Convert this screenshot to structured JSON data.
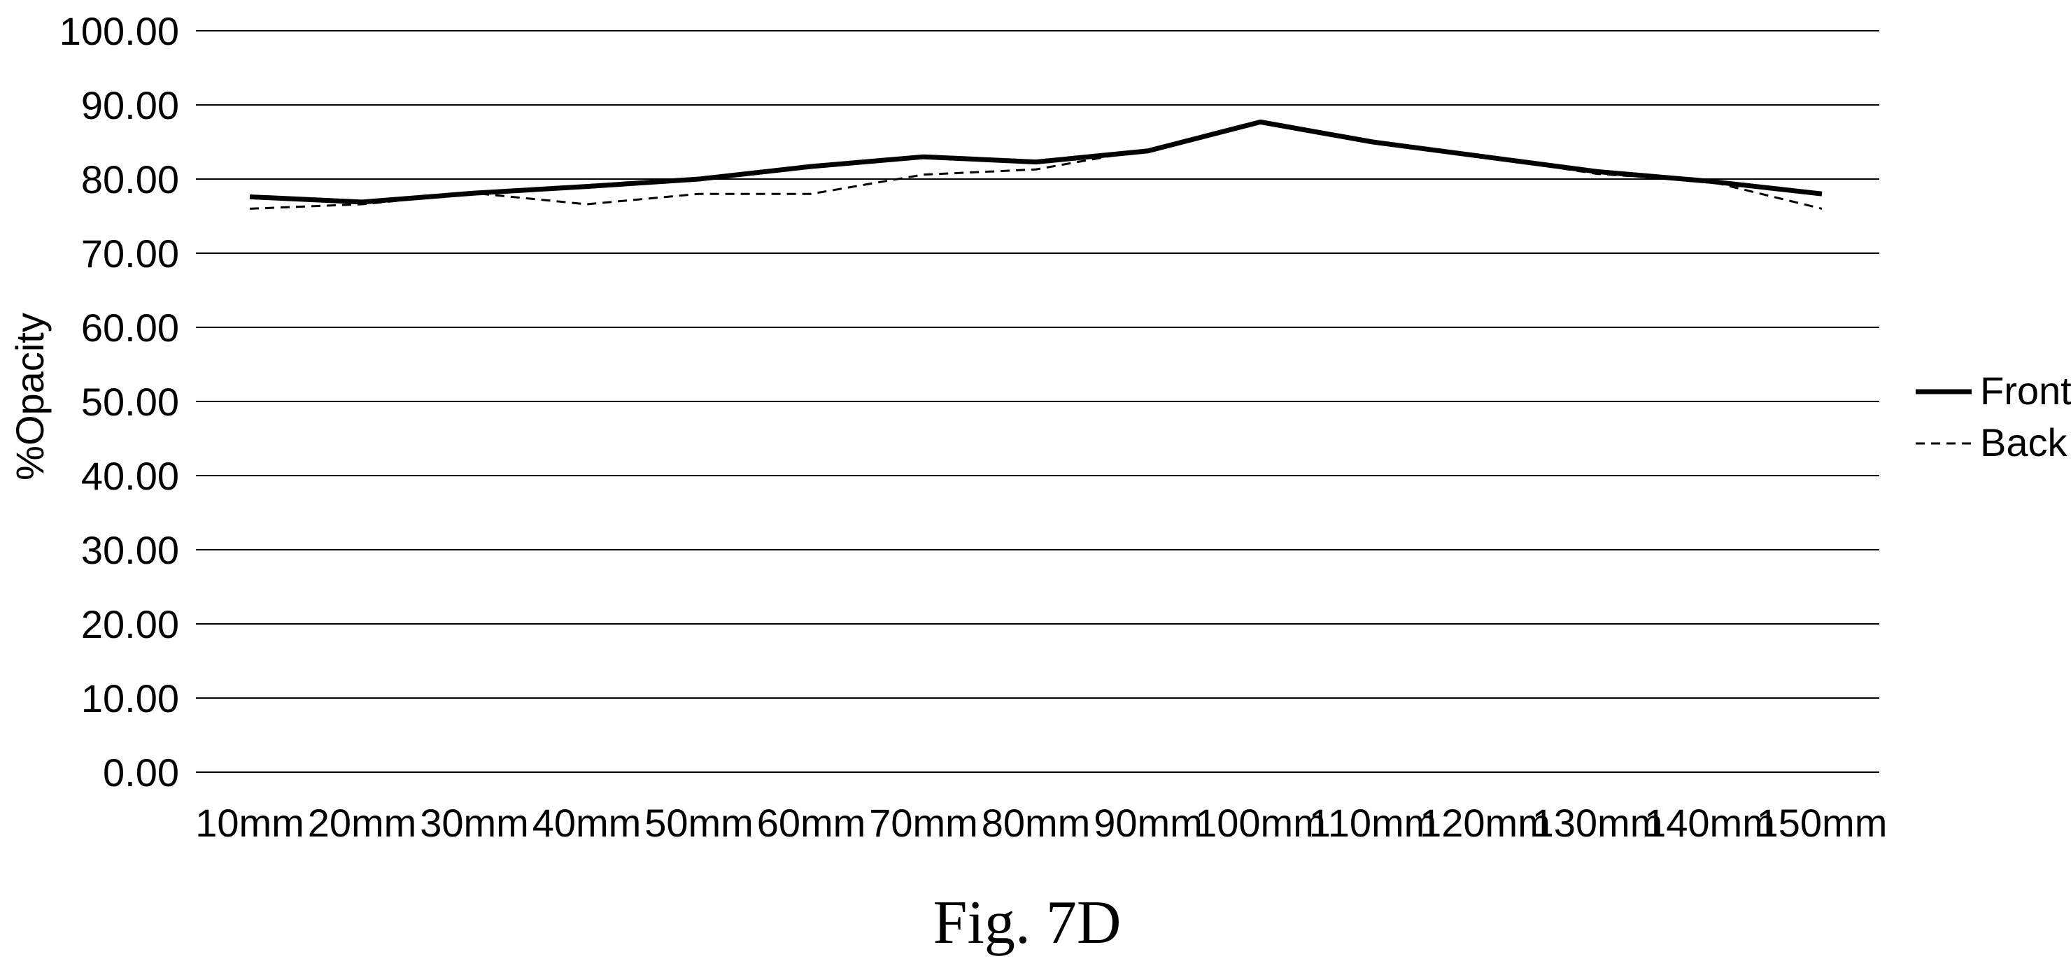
{
  "chart_data": {
    "type": "line",
    "title": "",
    "xlabel": "",
    "ylabel": "%Opacity",
    "ylim": [
      0,
      100
    ],
    "yticks": [
      "0.00",
      "10.00",
      "20.00",
      "30.00",
      "40.00",
      "50.00",
      "60.00",
      "70.00",
      "80.00",
      "90.00",
      "100.00"
    ],
    "ytick_values": [
      0,
      10,
      20,
      30,
      40,
      50,
      60,
      70,
      80,
      90,
      100
    ],
    "categories": [
      "10mm",
      "20mm",
      "30mm",
      "40mm",
      "50mm",
      "60mm",
      "70mm",
      "80mm",
      "90mm",
      "100mm",
      "110mm",
      "120mm",
      "130mm",
      "140mm",
      "150mm"
    ],
    "grid": true,
    "legend_position": "right",
    "series": [
      {
        "name": "Front",
        "style": "solid",
        "color": "#000000",
        "values": [
          77.6,
          76.9,
          78.1,
          79.0,
          80.0,
          81.7,
          83.0,
          82.3,
          83.8,
          87.7,
          85.0,
          83.0,
          81.0,
          79.7,
          78.0
        ]
      },
      {
        "name": "Back",
        "style": "dashed",
        "color": "#000000",
        "values": [
          76.0,
          76.6,
          78.1,
          76.6,
          78.0,
          78.0,
          80.6,
          81.3,
          84.0,
          87.7,
          85.0,
          83.0,
          80.7,
          79.7,
          76.0
        ]
      }
    ]
  },
  "figure": {
    "caption": "Fig. 7D"
  }
}
